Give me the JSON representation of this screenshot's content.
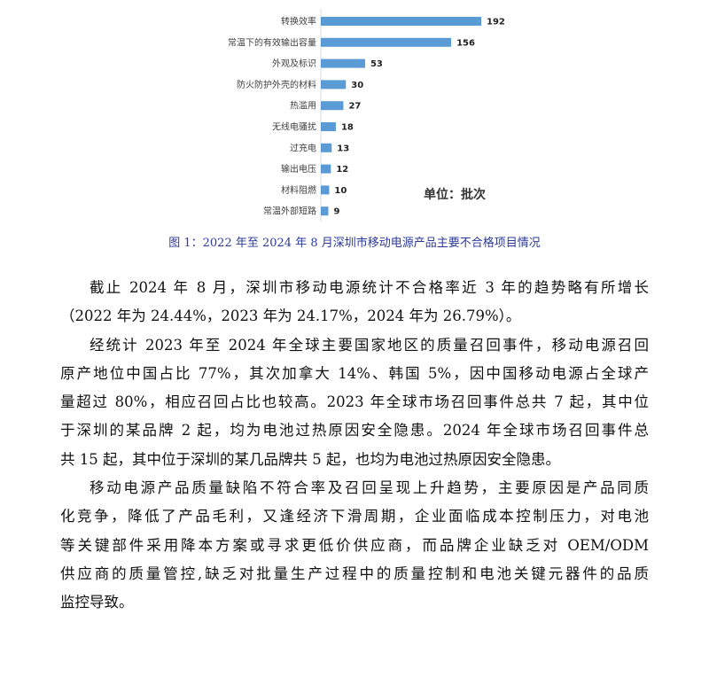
{
  "chart_data": {
    "type": "bar",
    "orientation": "horizontal",
    "categories": [
      "转换效率",
      "常温下的有效输出容量",
      "外观及标识",
      "防火防护外壳的材料",
      "热滥用",
      "无线电骚扰",
      "过充电",
      "输出电压",
      "材料阻燃",
      "常温外部短路"
    ],
    "values": [
      192,
      156,
      53,
      30,
      27,
      18,
      13,
      12,
      10,
      9
    ],
    "annotation": "单位：批次",
    "bar_color": "#5b9bd5",
    "grid": false
  },
  "caption": "图 1：2022 年至 2024 年 8 月深圳市移动电源产品主要不合格项目情况",
  "paragraphs": [
    [
      "截止 2024 年 8 月，深圳市移动电源统计不合格率近 3 年的趋势略有所增长",
      "（2022 年为 24.44%，2023 年为 24.17%，2024 年为 26.79%）。"
    ],
    [
      "经统计 2023 年至 2024 年全球主要国家地区的质量召回事件，移动电源召回",
      "原产地位中国占比 77%，其次加拿大 14%、韩国 5%，因中国移动电源占全球产",
      "量超过 80%，相应召回占比也较高。2023 年全球市场召回事件总共 7 起，其中位",
      "于深圳的某品牌 2 起，均为电池过热原因安全隐患。2024 年全球市场召回事件总",
      "共 15 起，其中位于深圳的某几品牌共 5 起，也均为电池过热原因安全隐患。"
    ],
    [
      "移动电源产品质量缺陷不符合率及召回呈现上升趋势，主要原因是产品同质",
      "化竞争，降低了产品毛利，又逢经济下滑周期，企业面临成本控制压力，对电池",
      "等关键部件采用降本方案或寻求更低价供应商，而品牌企业缺乏对 OEM/ODM",
      "供应商的质量管控,缺乏对批量生产过程中的质量控制和电池关键元器件的品质",
      "监控导致。"
    ]
  ]
}
